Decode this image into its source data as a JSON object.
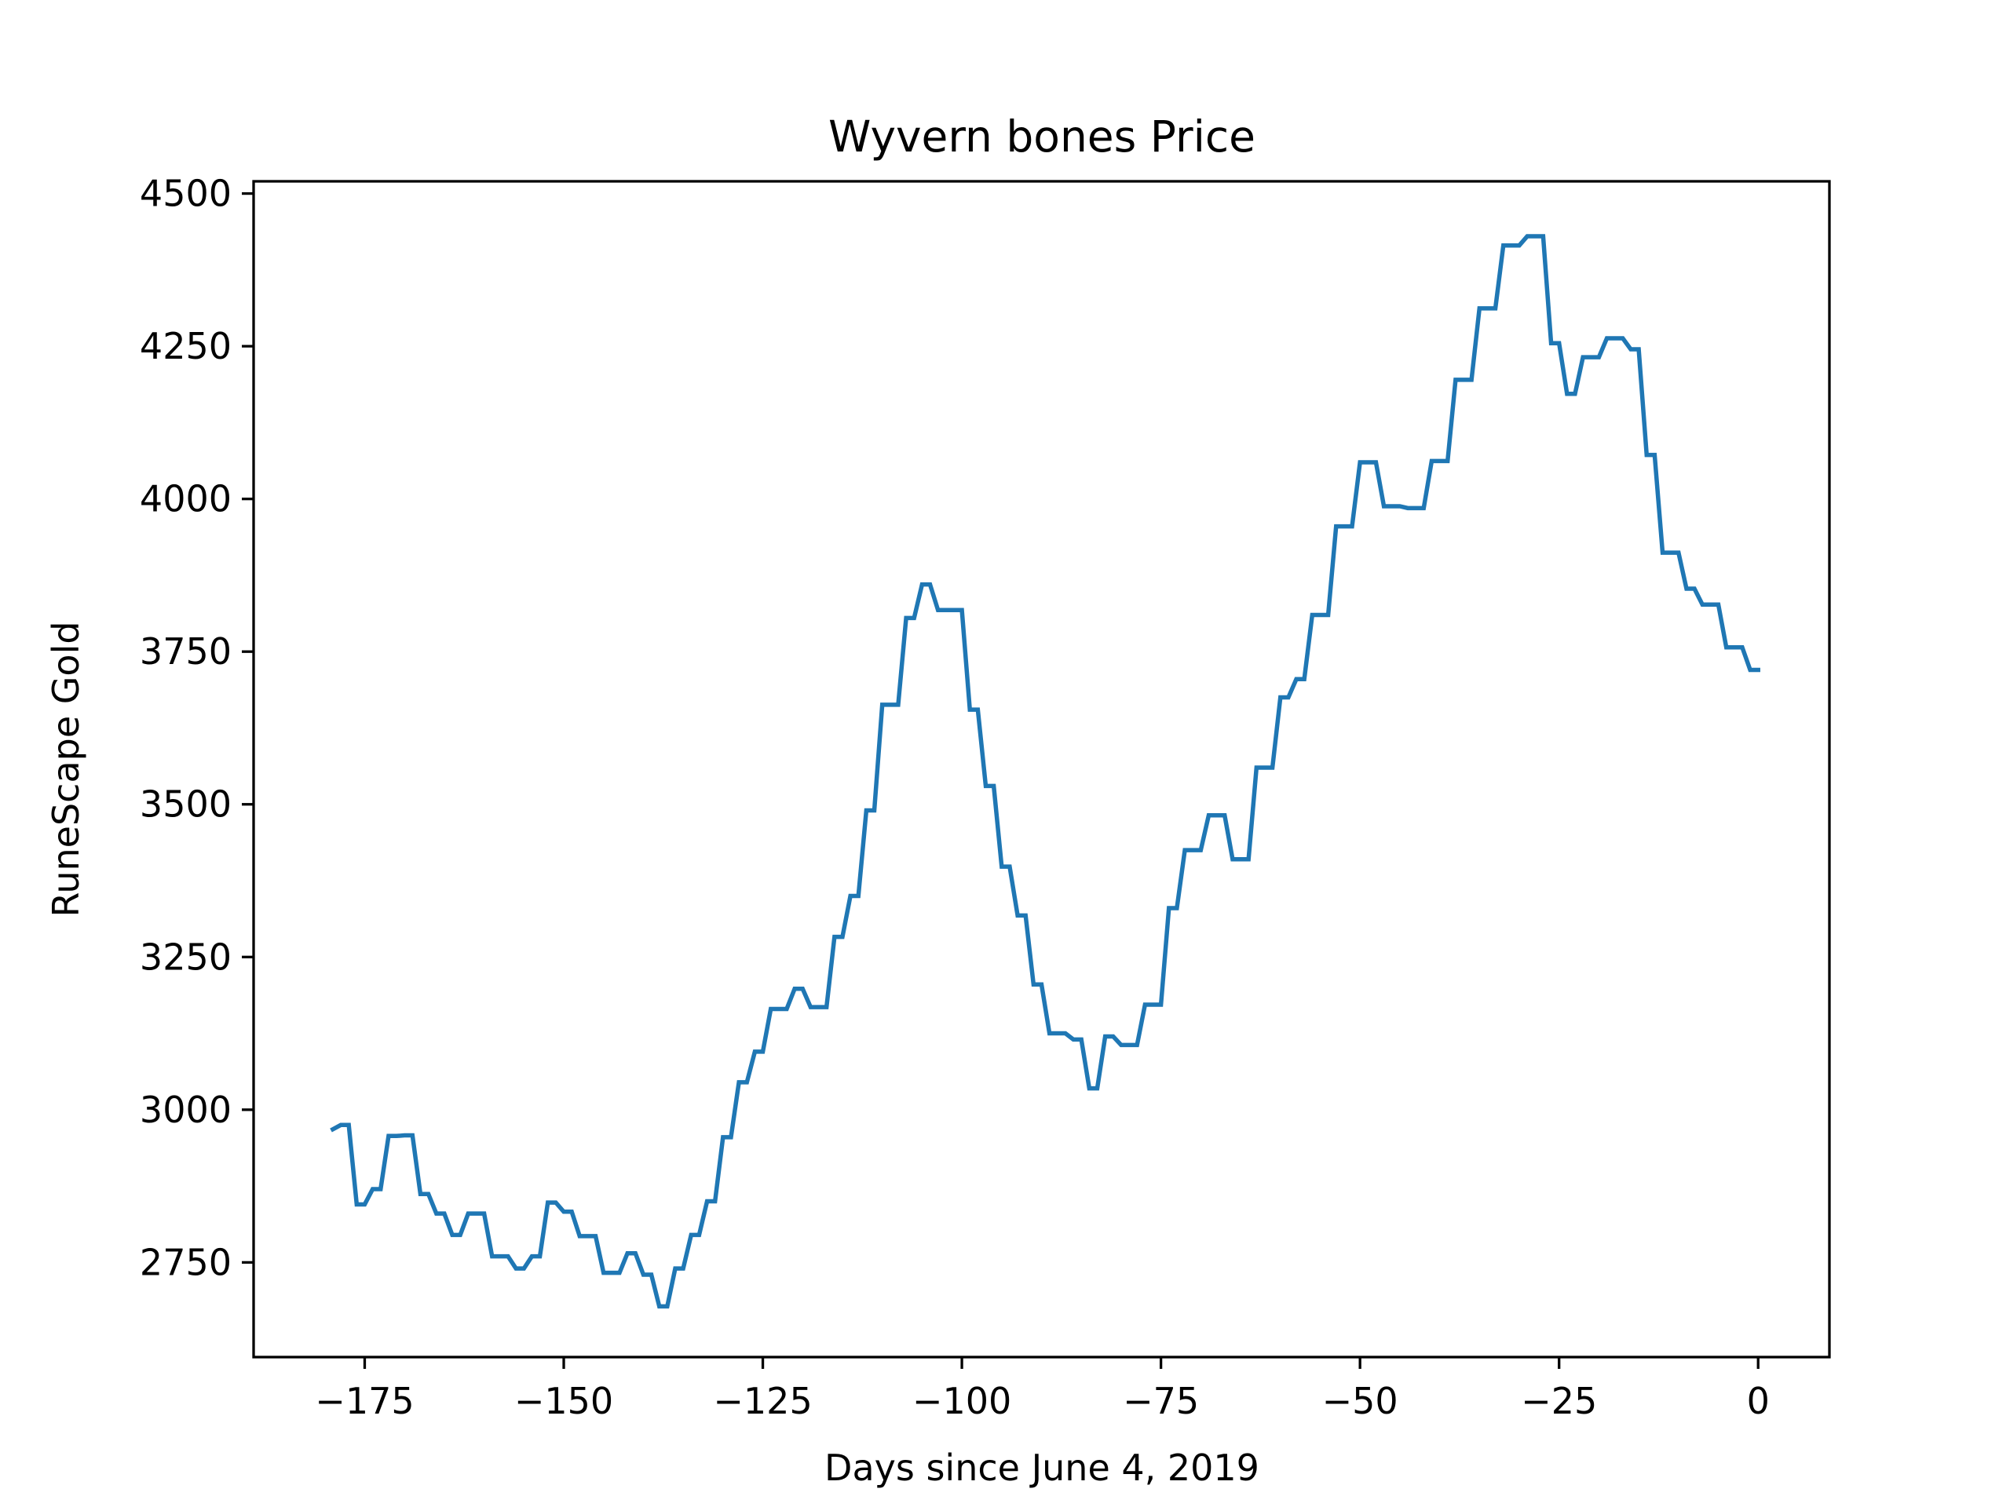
{
  "chart_data": {
    "type": "line",
    "title": "Wyvern bones Price",
    "xlabel": "Days since June 4, 2019",
    "ylabel": "RuneScape Gold",
    "xlim": [
      -188.95,
      8.95
    ],
    "ylim": [
      2595,
      4520
    ],
    "xticks": [
      -175,
      -150,
      -125,
      -100,
      -75,
      -50,
      -25,
      0
    ],
    "xtick_labels": [
      "−175",
      "−150",
      "−125",
      "−100",
      "−75",
      "−50",
      "−25",
      "0"
    ],
    "yticks": [
      2750,
      3000,
      3250,
      3500,
      3750,
      4000,
      4250,
      4500
    ],
    "ytick_labels": [
      "2750",
      "3000",
      "3250",
      "3500",
      "3750",
      "4000",
      "4250",
      "4500"
    ],
    "grid": false,
    "legend": "none",
    "series": [
      {
        "color": "#1f77b4",
        "x": [
          -179,
          -178,
          -177,
          -176,
          -175,
          -174,
          -173,
          -172,
          -171,
          -170,
          -169,
          -168,
          -167,
          -166,
          -165,
          -164,
          -163,
          -162,
          -161,
          -160,
          -159,
          -158,
          -157,
          -156,
          -155,
          -154,
          -153,
          -152,
          -151,
          -150,
          -149,
          -148,
          -147,
          -146,
          -145,
          -144,
          -143,
          -142,
          -141,
          -140,
          -139,
          -138,
          -137,
          -136,
          -135,
          -134,
          -133,
          -132,
          -131,
          -130,
          -129,
          -128,
          -127,
          -126,
          -125,
          -124,
          -123,
          -122,
          -121,
          -120,
          -119,
          -118,
          -117,
          -116,
          -115,
          -114,
          -113,
          -112,
          -111,
          -110,
          -109,
          -108,
          -107,
          -106,
          -105,
          -104,
          -103,
          -102,
          -101,
          -100,
          -99,
          -98,
          -97,
          -96,
          -95,
          -94,
          -93,
          -92,
          -91,
          -90,
          -89,
          -88,
          -87,
          -86,
          -85,
          -84,
          -83,
          -82,
          -81,
          -80,
          -79,
          -78,
          -77,
          -76,
          -75,
          -74,
          -73,
          -72,
          -71,
          -70,
          -69,
          -68,
          -67,
          -66,
          -65,
          -64,
          -63,
          -62,
          -61,
          -60,
          -59,
          -58,
          -57,
          -56,
          -55,
          -54,
          -53,
          -52,
          -51,
          -50,
          -49,
          -48,
          -47,
          -46,
          -45,
          -44,
          -43,
          -42,
          -41,
          -40,
          -39,
          -38,
          -37,
          -36,
          -35,
          -34,
          -33,
          -32,
          -31,
          -30,
          -29,
          -28,
          -27,
          -26,
          -25,
          -24,
          -23,
          -22,
          -21,
          -20,
          -19,
          -18,
          -17,
          -16,
          -15,
          -14,
          -13,
          -12,
          -11,
          -10,
          -9,
          -8,
          -7,
          -6,
          -5,
          -4,
          -3,
          -2,
          -1,
          0
        ],
        "y": [
          2968,
          2975,
          2975,
          2845,
          2845,
          2870,
          2870,
          2957,
          2957,
          2958,
          2958,
          2862,
          2862,
          2830,
          2830,
          2795,
          2795,
          2830,
          2830,
          2830,
          2760,
          2760,
          2760,
          2740,
          2740,
          2760,
          2760,
          2848,
          2848,
          2833,
          2833,
          2793,
          2793,
          2793,
          2733,
          2733,
          2733,
          2765,
          2765,
          2730,
          2730,
          2678,
          2678,
          2740,
          2740,
          2795,
          2795,
          2850,
          2850,
          2955,
          2955,
          3045,
          3045,
          3095,
          3095,
          3165,
          3165,
          3165,
          3198,
          3198,
          3168,
          3168,
          3168,
          3283,
          3283,
          3350,
          3350,
          3490,
          3490,
          3663,
          3663,
          3663,
          3805,
          3805,
          3860,
          3860,
          3818,
          3818,
          3818,
          3818,
          3655,
          3655,
          3530,
          3530,
          3398,
          3398,
          3318,
          3318,
          3205,
          3205,
          3125,
          3125,
          3125,
          3115,
          3115,
          3035,
          3035,
          3120,
          3120,
          3106,
          3106,
          3106,
          3172,
          3172,
          3172,
          3330,
          3330,
          3425,
          3425,
          3425,
          3482,
          3482,
          3482,
          3410,
          3410,
          3410,
          3560,
          3560,
          3560,
          3675,
          3675,
          3705,
          3705,
          3810,
          3810,
          3810,
          3955,
          3955,
          3955,
          4060,
          4060,
          4060,
          3988,
          3988,
          3988,
          3985,
          3985,
          3985,
          4062,
          4062,
          4062,
          4195,
          4195,
          4195,
          4312,
          4312,
          4312,
          4415,
          4415,
          4415,
          4430,
          4430,
          4430,
          4255,
          4255,
          4172,
          4172,
          4232,
          4232,
          4232,
          4263,
          4263,
          4263,
          4245,
          4245,
          4072,
          4072,
          3912,
          3912,
          3912,
          3853,
          3853,
          3827,
          3827,
          3827,
          3757,
          3757,
          3757,
          3720,
          3720
        ]
      }
    ]
  }
}
